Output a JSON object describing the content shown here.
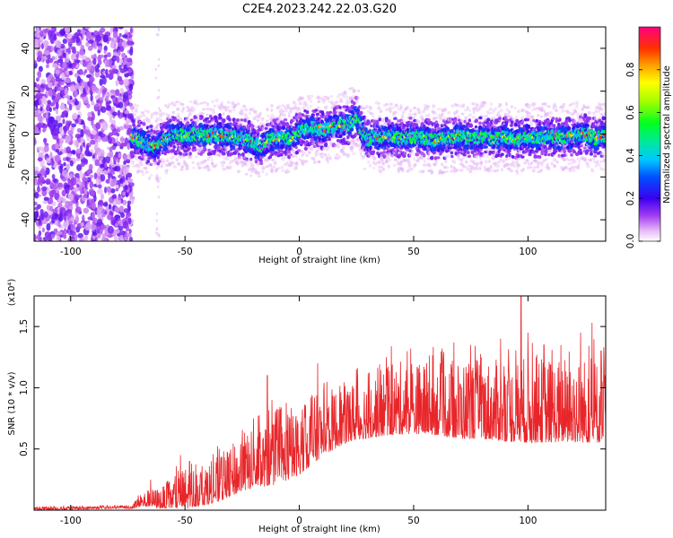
{
  "title": "C2E4.2023.242.22.03.G20",
  "colors": {
    "snr_line": "#e8262a",
    "background": "#ffffff",
    "axes": "#000000",
    "colormap": [
      "#ffffff",
      "#e8d6f8",
      "#b98cef",
      "#8a3cf0",
      "#5a00e8",
      "#0000ff",
      "#0080ff",
      "#00e0e0",
      "#00e080",
      "#00ff00",
      "#a0ff00",
      "#ffff00",
      "#ffa000",
      "#ff4000",
      "#ff0040",
      "#ff0080"
    ]
  },
  "chart_data": [
    {
      "type": "heatmap",
      "name": "spectrogram",
      "xlabel": "Height of straight line (km)",
      "ylabel": "Frequency (Hz)",
      "xlim": [
        -116,
        134
      ],
      "ylim": [
        -50,
        50
      ],
      "xticks": [
        -100,
        -50,
        0,
        50,
        100
      ],
      "yticks": [
        -40,
        -20,
        0,
        20,
        40
      ],
      "xtick_labels": [
        "-100",
        "-50",
        "0",
        "50",
        "100"
      ],
      "ytick_labels": [
        "-40",
        "-20",
        "0",
        "20",
        "40"
      ],
      "noise_region_x": [
        -116,
        -73
      ],
      "colorbar": {
        "label": "Normalized spectral amplitude",
        "range": [
          0.0,
          1.0
        ],
        "ticks": [
          0.0,
          0.2,
          0.4,
          0.6,
          0.8
        ],
        "tick_labels": [
          "0.0",
          "0.2",
          "0.4",
          "0.6",
          "0.8"
        ]
      },
      "frequency_track": {
        "x": [
          -73,
          -70,
          -66,
          -62,
          -58,
          -54,
          -50,
          -45,
          -40,
          -35,
          -30,
          -25,
          -20,
          -17,
          -14,
          -10,
          -6,
          -3,
          0,
          3,
          6,
          10,
          14,
          18,
          21,
          23,
          25,
          27,
          30,
          33,
          36,
          40,
          45,
          50,
          55,
          60,
          65,
          70,
          75,
          80,
          85,
          90,
          95,
          100,
          105,
          110,
          115,
          120,
          125,
          130,
          134
        ],
        "y": [
          -1,
          -3,
          -5,
          -6,
          -2,
          0,
          -1,
          0,
          -1,
          0,
          -1,
          -2,
          -4,
          -6,
          -3,
          -2,
          -2,
          -2,
          1,
          2,
          3,
          2,
          3,
          4,
          4,
          6,
          8,
          3,
          -3,
          -1,
          -2,
          -1,
          -2,
          -1,
          -2,
          -3,
          -2,
          -1,
          -2,
          -1,
          -2,
          -1,
          -3,
          -1,
          -2,
          -1,
          -2,
          -1,
          0,
          -2,
          -1
        ]
      }
    },
    {
      "type": "line",
      "name": "snr",
      "xlabel": "Height of straight line (km)",
      "ylabel": "SNR (10 * v/v)",
      "scale_label": "(x10⁴)",
      "xlim": [
        -116,
        134
      ],
      "ylim": [
        0.0,
        1.75
      ],
      "xticks": [
        -100,
        -50,
        0,
        50,
        100
      ],
      "yticks": [
        0.5,
        1.0,
        1.5
      ],
      "xtick_labels": [
        "-100",
        "-50",
        "0",
        "50",
        "100"
      ],
      "ytick_labels": [
        "0.5",
        "1.0",
        "1.5"
      ],
      "envelope": {
        "x": [
          -116,
          -100,
          -80,
          -73,
          -70,
          -65,
          -60,
          -55,
          -50,
          -45,
          -40,
          -35,
          -30,
          -25,
          -20,
          -15,
          -10,
          -5,
          0,
          5,
          10,
          15,
          20,
          25,
          30,
          35,
          40,
          50,
          60,
          70,
          80,
          90,
          100,
          110,
          120,
          130,
          134
        ],
        "base": [
          0.01,
          0.01,
          0.02,
          0.02,
          0.05,
          0.06,
          0.05,
          0.07,
          0.08,
          0.1,
          0.12,
          0.15,
          0.2,
          0.25,
          0.28,
          0.3,
          0.32,
          0.36,
          0.4,
          0.48,
          0.55,
          0.6,
          0.65,
          0.68,
          0.7,
          0.72,
          0.74,
          0.75,
          0.74,
          0.72,
          0.72,
          0.7,
          0.7,
          0.7,
          0.7,
          0.7,
          0.7
        ],
        "amp": [
          0.02,
          0.02,
          0.02,
          0.03,
          0.1,
          0.12,
          0.15,
          0.22,
          0.3,
          0.28,
          0.3,
          0.32,
          0.35,
          0.38,
          0.4,
          0.42,
          0.45,
          0.45,
          0.45,
          0.45,
          0.45,
          0.42,
          0.42,
          0.42,
          0.45,
          0.48,
          0.5,
          0.5,
          0.5,
          0.55,
          0.55,
          0.55,
          0.6,
          0.58,
          0.58,
          0.6,
          0.55
        ]
      },
      "peaks": [
        [
          -65,
          0.25
        ],
        [
          -52,
          0.45
        ],
        [
          -48,
          0.4
        ],
        [
          -35,
          0.5
        ],
        [
          -25,
          0.55
        ],
        [
          -20,
          0.75
        ],
        [
          -14,
          1.1
        ],
        [
          -12,
          0.9
        ],
        [
          -5,
          0.78
        ],
        [
          5,
          0.92
        ],
        [
          8,
          1.2
        ],
        [
          25,
          1.15
        ],
        [
          38,
          1.25
        ],
        [
          55,
          1.15
        ],
        [
          75,
          1.35
        ],
        [
          88,
          1.4
        ],
        [
          97,
          1.75
        ],
        [
          100,
          1.45
        ],
        [
          107,
          1.35
        ],
        [
          123,
          1.45
        ],
        [
          128,
          1.53
        ],
        [
          132,
          1.3
        ]
      ]
    }
  ]
}
